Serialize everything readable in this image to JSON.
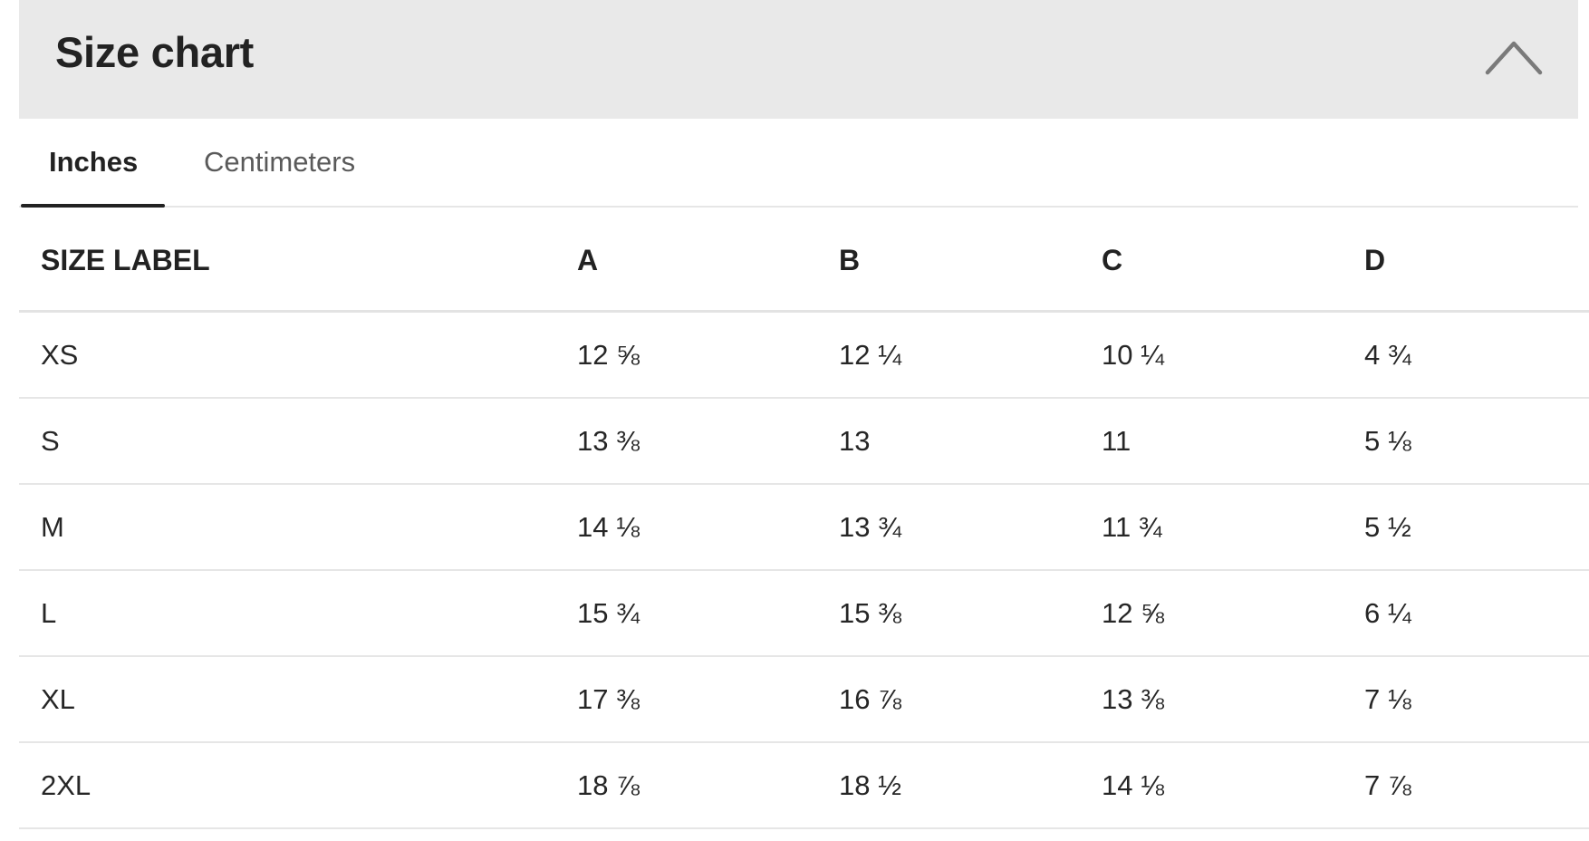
{
  "header": {
    "title": "Size chart",
    "collapse_icon": "chevron-up-icon"
  },
  "tabs": [
    {
      "label": "Inches",
      "active": true
    },
    {
      "label": "Centimeters",
      "active": false
    }
  ],
  "table": {
    "columns": [
      "SIZE LABEL",
      "A",
      "B",
      "C",
      "D"
    ],
    "rows": [
      {
        "size": "XS",
        "a": "12 ⅝",
        "b": "12 ¼",
        "c": "10 ¼",
        "d": "4 ¾"
      },
      {
        "size": "S",
        "a": "13 ⅜",
        "b": "13",
        "c": "11",
        "d": "5 ⅛"
      },
      {
        "size": "M",
        "a": "14 ⅛",
        "b": "13 ¾",
        "c": "11 ¾",
        "d": "5 ½"
      },
      {
        "size": "L",
        "a": "15 ¾",
        "b": "15 ⅜",
        "c": "12 ⅝",
        "d": "6 ¼"
      },
      {
        "size": "XL",
        "a": "17 ⅜",
        "b": "16 ⅞",
        "c": "13 ⅜",
        "d": "7 ⅛"
      },
      {
        "size": "2XL",
        "a": "18 ⅞",
        "b": "18 ½",
        "c": "14 ⅛",
        "d": "7 ⅞"
      }
    ]
  },
  "colors": {
    "header_bg": "#e9e9e9",
    "text": "#222222",
    "muted_text": "#5a5a5a",
    "divider": "#e6e6e6"
  }
}
